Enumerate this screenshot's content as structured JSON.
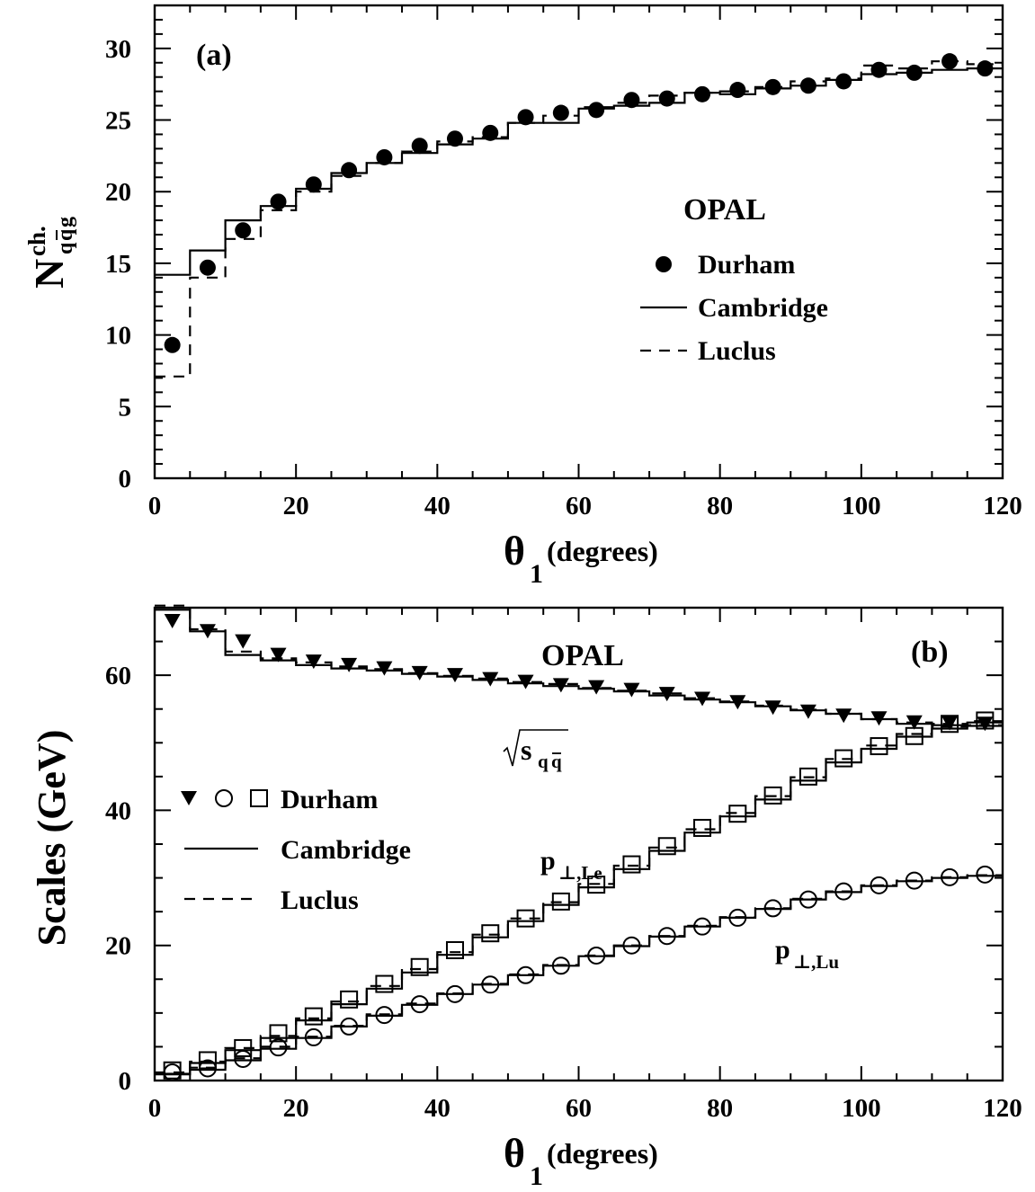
{
  "chart_data": [
    {
      "type": "line",
      "panel_label": "(a)",
      "experiment_label": "OPAL",
      "ylabel": {
        "main": "N",
        "sup": "ch.",
        "sub": "q",
        "sub_bar": "q",
        "sub_end": "g"
      },
      "xlabel": {
        "main": "θ",
        "sub": "1",
        "units": "(degrees)"
      },
      "xlim": [
        0,
        120
      ],
      "ylim": [
        0,
        33
      ],
      "xticks": [
        0,
        20,
        40,
        60,
        80,
        100,
        120
      ],
      "yticks": [
        0,
        5,
        10,
        15,
        20,
        25,
        30
      ],
      "xtick_labels": [
        "0",
        "20",
        "40",
        "60",
        "80",
        "100",
        "120"
      ],
      "ytick_labels": [
        "0",
        "5",
        "10",
        "15",
        "20",
        "25",
        "30"
      ],
      "legend": {
        "title": "OPAL",
        "durham": "Durham",
        "cambridge": "Cambridge",
        "luclus": "Luclus",
        "placement": "center-right"
      },
      "bin_edges": [
        0,
        5,
        10,
        15,
        20,
        25,
        30,
        35,
        40,
        45,
        50,
        55,
        60,
        65,
        70,
        75,
        80,
        85,
        90,
        95,
        100,
        105,
        110,
        115,
        120
      ],
      "series": [
        {
          "name": "Durham",
          "style": "filled-circle",
          "x": [
            2.5,
            7.5,
            12.5,
            17.5,
            22.5,
            27.5,
            32.5,
            37.5,
            42.5,
            47.5,
            52.5,
            57.5,
            62.5,
            67.5,
            72.5,
            77.5,
            82.5,
            87.5,
            92.5,
            97.5,
            102.5,
            107.5,
            112.5,
            117.5
          ],
          "values": [
            9.3,
            14.7,
            17.3,
            19.3,
            20.5,
            21.5,
            22.4,
            23.2,
            23.7,
            24.1,
            25.2,
            25.5,
            25.7,
            26.4,
            26.5,
            26.8,
            27.1,
            27.3,
            27.4,
            27.7,
            28.5,
            28.3,
            29.1,
            28.6
          ]
        },
        {
          "name": "Cambridge",
          "style": "solid-histogram",
          "values": [
            14.2,
            15.9,
            18.0,
            19.0,
            20.2,
            21.3,
            22.0,
            22.7,
            23.3,
            23.7,
            24.8,
            24.8,
            25.8,
            26.0,
            26.2,
            26.9,
            26.8,
            27.2,
            27.4,
            27.8,
            28.2,
            28.3,
            28.5,
            28.6
          ]
        },
        {
          "name": "Luclus",
          "style": "dashed-histogram",
          "values": [
            7.1,
            14.0,
            16.7,
            18.7,
            20.0,
            21.1,
            22.0,
            22.8,
            23.5,
            23.8,
            24.8,
            25.3,
            25.9,
            26.2,
            26.7,
            26.9,
            27.0,
            27.3,
            27.7,
            27.9,
            28.8,
            28.6,
            29.1,
            28.9
          ]
        }
      ]
    },
    {
      "type": "line",
      "panel_label": "(b)",
      "experiment_label": "OPAL",
      "ylabel": "Scales (GeV)",
      "xlabel": {
        "main": "θ",
        "sub": "1",
        "units": "(degrees)"
      },
      "xlim": [
        0,
        120
      ],
      "ylim": [
        0,
        70
      ],
      "xticks": [
        0,
        20,
        40,
        60,
        80,
        100,
        120
      ],
      "yticks": [
        0,
        20,
        40,
        60
      ],
      "xtick_labels": [
        "0",
        "20",
        "40",
        "60",
        "80",
        "100",
        "120"
      ],
      "ytick_labels": [
        "0",
        "20",
        "40",
        "60"
      ],
      "legend": {
        "durham": "Durham",
        "cambridge": "Cambridge",
        "luclus": "Luclus",
        "placement": "center-left"
      },
      "annotations": {
        "sqrt_s": {
          "main": "s",
          "sub": "q",
          "sub_bar": "q"
        },
        "p_le": {
          "main": "p",
          "sub": "⊥,Le"
        },
        "p_lu": {
          "main": "p",
          "sub": "⊥,Lu"
        }
      },
      "bin_edges": [
        0,
        5,
        10,
        15,
        20,
        25,
        30,
        35,
        40,
        45,
        50,
        55,
        60,
        65,
        70,
        75,
        80,
        85,
        90,
        95,
        100,
        105,
        110,
        115,
        120
      ],
      "x": [
        2.5,
        7.5,
        12.5,
        17.5,
        22.5,
        27.5,
        32.5,
        37.5,
        42.5,
        47.5,
        52.5,
        57.5,
        62.5,
        67.5,
        72.5,
        77.5,
        82.5,
        87.5,
        92.5,
        97.5,
        102.5,
        107.5,
        112.5,
        117.5
      ],
      "series": [
        {
          "name": "sqrt_s Durham",
          "style": "filled-triangle-down",
          "values": [
            68.0,
            66.5,
            65.0,
            63.0,
            62.0,
            61.5,
            61.0,
            60.3,
            60.0,
            59.4,
            59.0,
            58.5,
            58.2,
            57.8,
            57.2,
            56.5,
            56.0,
            55.2,
            54.6,
            54.0,
            53.6,
            53.0,
            52.9,
            52.8
          ]
        },
        {
          "name": "p_le Durham",
          "style": "open-square",
          "values": [
            1.5,
            3.0,
            4.8,
            7.0,
            9.5,
            12.0,
            14.3,
            16.8,
            19.3,
            21.8,
            24.0,
            26.5,
            29.0,
            32.0,
            34.7,
            37.4,
            39.5,
            42.2,
            45.0,
            47.7,
            49.5,
            51.0,
            52.8,
            53.3
          ]
        },
        {
          "name": "p_lu Durham",
          "style": "open-circle",
          "values": [
            1.2,
            1.8,
            3.2,
            4.9,
            6.4,
            8.0,
            9.7,
            11.3,
            12.8,
            14.2,
            15.6,
            17.0,
            18.5,
            20.0,
            21.4,
            22.8,
            24.1,
            25.5,
            26.8,
            28.0,
            28.9,
            29.6,
            30.1,
            30.5
          ]
        },
        {
          "name": "sqrt_s Cambridge",
          "style": "solid-histogram",
          "values": [
            69.7,
            66.5,
            63.0,
            62.2,
            61.5,
            61.0,
            60.7,
            60.2,
            59.8,
            59.3,
            58.8,
            58.4,
            58.0,
            57.6,
            57.0,
            56.4,
            56.0,
            55.4,
            54.8,
            54.3,
            53.5,
            52.8,
            52.6,
            52.5
          ]
        },
        {
          "name": "sqrt_s Luclus",
          "style": "dashed-histogram",
          "values": [
            70.3,
            66.8,
            63.5,
            62.5,
            61.9,
            61.3,
            60.9,
            60.3,
            59.9,
            59.5,
            59.0,
            58.7,
            58.1,
            57.7,
            57.3,
            56.6,
            56.1,
            55.5,
            54.9,
            54.3,
            53.5,
            53.0,
            52.8,
            52.6
          ]
        },
        {
          "name": "p_le Cambridge",
          "style": "solid-histogram",
          "values": [
            1.0,
            2.6,
            4.5,
            6.3,
            8.9,
            11.3,
            13.6,
            16.0,
            18.6,
            21.2,
            23.6,
            26.0,
            28.6,
            31.3,
            34.0,
            36.7,
            39.1,
            41.6,
            44.4,
            47.1,
            49.1,
            50.9,
            52.1,
            53.0
          ]
        },
        {
          "name": "p_le Luclus",
          "style": "dashed-histogram",
          "values": [
            1.2,
            2.8,
            4.8,
            6.6,
            9.2,
            11.7,
            14.0,
            16.5,
            19.0,
            21.6,
            24.0,
            26.4,
            29.1,
            31.8,
            34.5,
            37.2,
            39.6,
            42.1,
            44.9,
            47.6,
            49.6,
            51.3,
            52.4,
            53.2
          ]
        },
        {
          "name": "p_lu Cambridge",
          "style": "solid-histogram",
          "values": [
            0.9,
            1.6,
            3.0,
            4.7,
            6.3,
            8.0,
            9.6,
            11.2,
            12.8,
            14.2,
            15.6,
            17.0,
            18.4,
            19.9,
            21.3,
            22.8,
            24.1,
            25.4,
            26.8,
            27.9,
            28.8,
            29.5,
            30.0,
            30.3
          ]
        },
        {
          "name": "p_lu Luclus",
          "style": "dashed-histogram",
          "values": [
            1.1,
            1.9,
            3.3,
            5.0,
            6.5,
            8.1,
            9.8,
            11.4,
            12.9,
            14.3,
            15.7,
            17.1,
            18.5,
            20.0,
            21.4,
            22.9,
            24.2,
            25.5,
            26.9,
            28.0,
            28.9,
            29.6,
            30.1,
            30.4
          ]
        }
      ]
    }
  ]
}
